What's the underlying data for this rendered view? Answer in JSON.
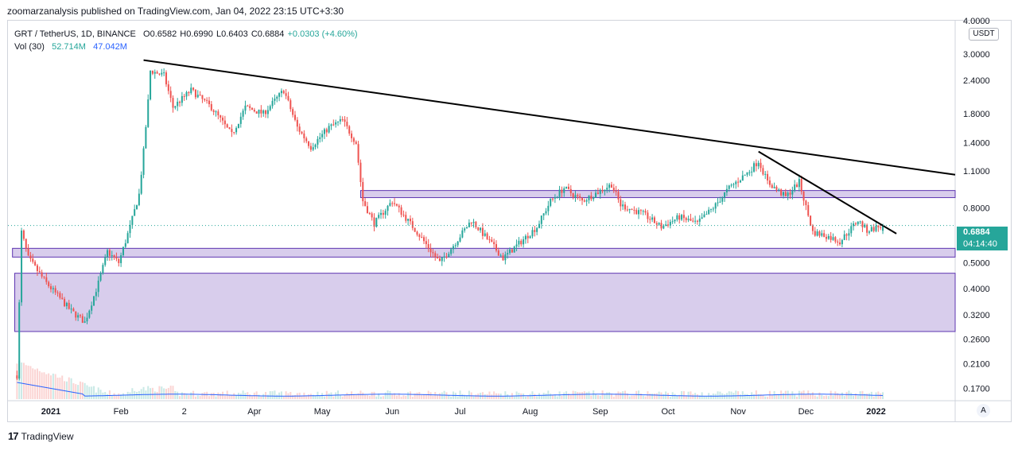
{
  "header": {
    "publisher": "zoomarzanalysis published on TradingView.com, Jan 04, 2022 23:15 UTC+3:30"
  },
  "legend": {
    "symbol": "GRT / TetherUS, 1D, BINANCE",
    "o_label": "O",
    "o": "0.6582",
    "h_label": "H",
    "h": "0.6990",
    "l_label": "L",
    "l": "0.6403",
    "c_label": "C",
    "c": "0.6884",
    "change": "+0.0303 (+4.60%)",
    "vol_label": "Vol (30)",
    "vol_value": "52.714M",
    "vol_ma": "47.042M"
  },
  "price_axis": {
    "unit": "USDT",
    "last_price": "0.6884",
    "countdown": "04:14:40"
  },
  "buttons": {
    "auto": "A"
  },
  "footer": {
    "brand": "TradingView",
    "logo": "17"
  },
  "colors": {
    "up": "#26a69a",
    "down": "#ef5350",
    "zone_fill": "#d1c4e9",
    "zone_border": "#5e35b1",
    "trendline": "#000000",
    "volume_ma": "#2962ff"
  },
  "chart_data": {
    "type": "candlestick",
    "title": "GRT / TetherUS, 1D, BINANCE",
    "y_scale": "log",
    "ylim": [
      0.155,
      4.0
    ],
    "y_ticks": [
      {
        "value": 4.0,
        "label": "4.0000"
      },
      {
        "value": 3.0,
        "label": "3.0000"
      },
      {
        "value": 2.4,
        "label": "2.4000"
      },
      {
        "value": 1.8,
        "label": "1.8000"
      },
      {
        "value": 1.4,
        "label": "1.4000"
      },
      {
        "value": 1.1,
        "label": "1.1000"
      },
      {
        "value": 0.8,
        "label": "0.8000"
      },
      {
        "value": 0.5,
        "label": "0.5000"
      },
      {
        "value": 0.4,
        "label": "0.4000"
      },
      {
        "value": 0.32,
        "label": "0.3200"
      },
      {
        "value": 0.26,
        "label": "0.2600"
      },
      {
        "value": 0.21,
        "label": "0.2100"
      },
      {
        "value": 0.17,
        "label": "0.1700"
      }
    ],
    "x_ticks": [
      {
        "date": "2021-01-01",
        "label": "2021"
      },
      {
        "date": "2021-02-01",
        "label": "Feb"
      },
      {
        "date": "2021-03-01",
        "label": "2"
      },
      {
        "date": "2021-04-01",
        "label": "Apr"
      },
      {
        "date": "2021-05-01",
        "label": "May"
      },
      {
        "date": "2021-06-01",
        "label": "Jun"
      },
      {
        "date": "2021-07-01",
        "label": "Jul"
      },
      {
        "date": "2021-08-01",
        "label": "Aug"
      },
      {
        "date": "2021-09-01",
        "label": "Sep"
      },
      {
        "date": "2021-10-01",
        "label": "Oct"
      },
      {
        "date": "2021-11-01",
        "label": "Nov"
      },
      {
        "date": "2021-12-01",
        "label": "Dec"
      },
      {
        "date": "2022-01-01",
        "label": "2022"
      }
    ],
    "x_range": [
      "2020-12-13",
      "2022-02-05"
    ],
    "price_path": [
      {
        "date": "2020-12-17",
        "close": 0.19
      },
      {
        "date": "2020-12-19",
        "close": 0.65
      },
      {
        "date": "2020-12-22",
        "close": 0.52
      },
      {
        "date": "2020-12-30",
        "close": 0.42
      },
      {
        "date": "2021-01-10",
        "close": 0.33
      },
      {
        "date": "2021-01-16",
        "close": 0.3
      },
      {
        "date": "2021-01-22",
        "close": 0.42
      },
      {
        "date": "2021-01-26",
        "close": 0.55
      },
      {
        "date": "2021-01-31",
        "close": 0.5
      },
      {
        "date": "2021-02-05",
        "close": 0.68
      },
      {
        "date": "2021-02-09",
        "close": 0.9
      },
      {
        "date": "2021-02-11",
        "close": 1.3
      },
      {
        "date": "2021-02-13",
        "close": 2.0
      },
      {
        "date": "2021-02-14",
        "close": 2.6
      },
      {
        "date": "2021-02-20",
        "close": 2.5
      },
      {
        "date": "2021-02-24",
        "close": 1.9
      },
      {
        "date": "2021-03-04",
        "close": 2.2
      },
      {
        "date": "2021-03-13",
        "close": 1.9
      },
      {
        "date": "2021-03-22",
        "close": 1.5
      },
      {
        "date": "2021-03-28",
        "close": 1.9
      },
      {
        "date": "2021-04-05",
        "close": 1.8
      },
      {
        "date": "2021-04-14",
        "close": 2.2
      },
      {
        "date": "2021-04-20",
        "close": 1.6
      },
      {
        "date": "2021-04-26",
        "close": 1.35
      },
      {
        "date": "2021-05-04",
        "close": 1.6
      },
      {
        "date": "2021-05-10",
        "close": 1.7
      },
      {
        "date": "2021-05-16",
        "close": 1.4
      },
      {
        "date": "2021-05-19",
        "close": 0.85
      },
      {
        "date": "2021-05-24",
        "close": 0.7
      },
      {
        "date": "2021-06-01",
        "close": 0.85
      },
      {
        "date": "2021-06-12",
        "close": 0.65
      },
      {
        "date": "2021-06-22",
        "close": 0.5
      },
      {
        "date": "2021-06-28",
        "close": 0.58
      },
      {
        "date": "2021-07-06",
        "close": 0.72
      },
      {
        "date": "2021-07-14",
        "close": 0.6
      },
      {
        "date": "2021-07-20",
        "close": 0.52
      },
      {
        "date": "2021-07-28",
        "close": 0.6
      },
      {
        "date": "2021-08-04",
        "close": 0.68
      },
      {
        "date": "2021-08-10",
        "close": 0.85
      },
      {
        "date": "2021-08-16",
        "close": 0.95
      },
      {
        "date": "2021-08-24",
        "close": 0.85
      },
      {
        "date": "2021-09-06",
        "close": 0.98
      },
      {
        "date": "2021-09-10",
        "close": 0.82
      },
      {
        "date": "2021-09-20",
        "close": 0.76
      },
      {
        "date": "2021-09-28",
        "close": 0.68
      },
      {
        "date": "2021-10-06",
        "close": 0.74
      },
      {
        "date": "2021-10-14",
        "close": 0.7
      },
      {
        "date": "2021-10-22",
        "close": 0.82
      },
      {
        "date": "2021-10-28",
        "close": 0.95
      },
      {
        "date": "2021-11-06",
        "close": 1.1
      },
      {
        "date": "2021-11-10",
        "close": 1.2
      },
      {
        "date": "2021-11-14",
        "close": 1.0
      },
      {
        "date": "2021-11-22",
        "close": 0.88
      },
      {
        "date": "2021-11-28",
        "close": 1.0
      },
      {
        "date": "2021-12-04",
        "close": 0.65
      },
      {
        "date": "2021-12-10",
        "close": 0.63
      },
      {
        "date": "2021-12-16",
        "close": 0.6
      },
      {
        "date": "2021-12-24",
        "close": 0.72
      },
      {
        "date": "2021-12-28",
        "close": 0.66
      },
      {
        "date": "2022-01-04",
        "close": 0.6884
      }
    ],
    "last": {
      "date": "2022-01-04",
      "open": 0.6582,
      "high": 0.699,
      "low": 0.6403,
      "close": 0.6884
    },
    "zones": [
      {
        "from": 0.875,
        "to": 0.93,
        "start": "2021-05-18",
        "end": "2022-02-05"
      },
      {
        "from": 0.525,
        "to": 0.566,
        "start": "2020-12-15",
        "end": "2022-02-05"
      },
      {
        "from": 0.277,
        "to": 0.457,
        "start": "2020-12-16",
        "end": "2022-02-05"
      }
    ],
    "trendlines": [
      {
        "from": {
          "date": "2021-02-11",
          "price": 2.85
        },
        "to": {
          "date": "2022-02-05",
          "price": 1.065
        }
      },
      {
        "from": {
          "date": "2021-11-10",
          "price": 1.3
        },
        "to": {
          "date": "2022-01-10",
          "price": 0.642
        }
      }
    ],
    "volume_ma_note": "Vol (30) moving average line"
  }
}
